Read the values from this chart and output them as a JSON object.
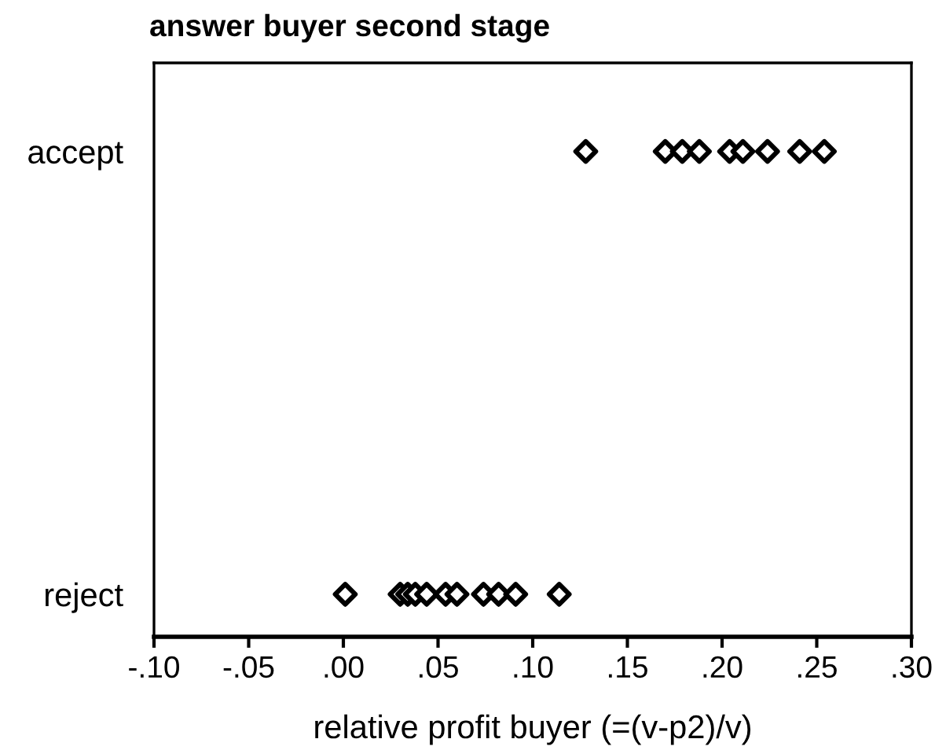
{
  "chart_data": {
    "type": "scatter",
    "title": "answer buyer second stage",
    "xlabel": "relative profit buyer (=(v-p2)/v)",
    "orientation": "horizontal",
    "categories": [
      "accept",
      "reject"
    ],
    "series": [
      {
        "color": "#000000",
        "x": [
          "accept",
          "accept",
          "accept",
          "accept",
          "accept",
          "accept",
          "accept",
          "accept",
          "accept"
        ],
        "values": [
          0.128,
          0.17,
          0.179,
          0.188,
          0.204,
          0.211,
          0.224,
          0.241,
          0.254
        ]
      },
      {
        "color": "#000000",
        "x": [
          "reject",
          "reject",
          "reject",
          "reject",
          "reject",
          "reject",
          "reject",
          "reject",
          "reject",
          "reject",
          "reject"
        ],
        "values": [
          0.001,
          0.03,
          0.034,
          0.038,
          0.044,
          0.054,
          0.06,
          0.074,
          0.082,
          0.091,
          0.114
        ]
      }
    ],
    "xlim": [
      -0.1,
      0.3
    ],
    "xticks": [
      {
        "value": -0.1,
        "label": "-.10"
      },
      {
        "value": -0.05,
        "label": "-.05"
      },
      {
        "value": 0.0,
        "label": ".00"
      },
      {
        "value": 0.05,
        "label": ".05"
      },
      {
        "value": 0.1,
        "label": ".10"
      },
      {
        "value": 0.15,
        "label": ".15"
      },
      {
        "value": 0.2,
        "label": ".20"
      },
      {
        "value": 0.25,
        "label": ".25"
      },
      {
        "value": 0.3,
        "label": ".30"
      }
    ],
    "marker": "diamond",
    "grid": false,
    "legend": false
  }
}
